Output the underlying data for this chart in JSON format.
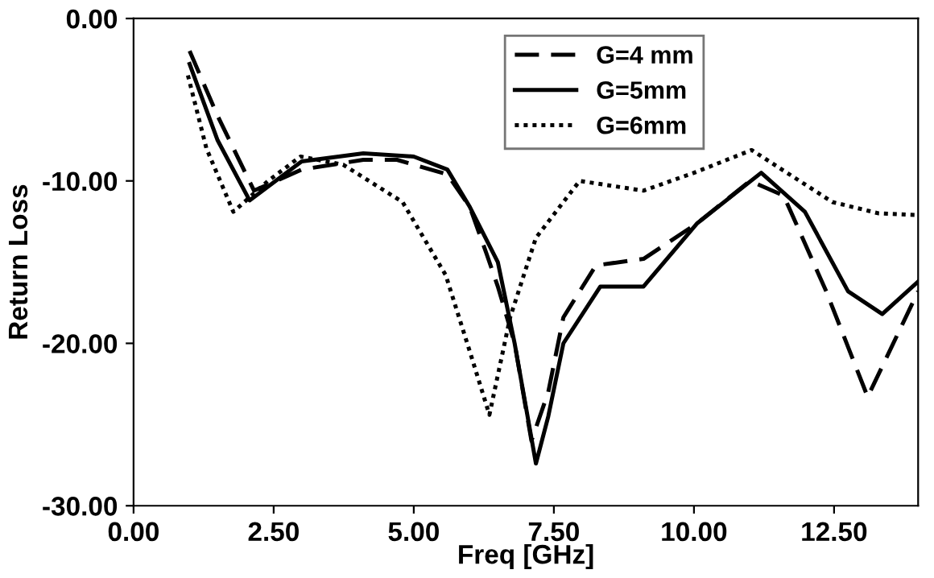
{
  "chart_data": {
    "type": "line",
    "xlabel": "Freq [GHz]",
    "ylabel": "Return Loss",
    "xlim": [
      0,
      14
    ],
    "ylim": [
      -30,
      0
    ],
    "xticks": [
      {
        "value": 0,
        "label": "0.00"
      },
      {
        "value": 2.5,
        "label": "2.50"
      },
      {
        "value": 5,
        "label": "5.00"
      },
      {
        "value": 7.5,
        "label": "7.50"
      },
      {
        "value": 10,
        "label": "10.00"
      },
      {
        "value": 12.5,
        "label": "12.50"
      }
    ],
    "yticks": [
      {
        "value": -30,
        "label": "-30.00"
      },
      {
        "value": -20,
        "label": "-20.00"
      },
      {
        "value": -10,
        "label": "-10.00"
      },
      {
        "value": 0,
        "label": "0.00"
      }
    ],
    "grid": false,
    "legend": "top",
    "marker": "none",
    "series": [
      {
        "name": "G=4 mm",
        "color": "#000000",
        "line_style": "dashed",
        "x": [
          1.0,
          1.5,
          2.15,
          3.0,
          4.1,
          4.7,
          5.6,
          6.0,
          6.3,
          6.5,
          6.8,
          7.1,
          7.4,
          7.67,
          8.25,
          9.1,
          10.06,
          11.0,
          11.6,
          12.36,
          13.1,
          14.0
        ],
        "values": [
          -2.0,
          -6.0,
          -10.6,
          -9.3,
          -8.7,
          -8.7,
          -9.6,
          -11.6,
          -14.5,
          -16.5,
          -20.0,
          -26.0,
          -23.0,
          -18.4,
          -15.2,
          -14.8,
          -12.6,
          -10.0,
          -10.9,
          -16.8,
          -23.3,
          -16.8
        ]
      },
      {
        "name": "G=5mm",
        "color": "#000000",
        "line_style": "solid",
        "x": [
          1.0,
          1.5,
          2.07,
          3.0,
          4.1,
          5.0,
          5.6,
          6.0,
          6.5,
          6.8,
          7.18,
          7.4,
          7.67,
          8.33,
          9.1,
          10.06,
          11.2,
          11.98,
          12.75,
          13.36,
          14.0
        ],
        "values": [
          -2.8,
          -7.5,
          -11.2,
          -8.8,
          -8.3,
          -8.5,
          -9.3,
          -11.6,
          -15.0,
          -20.0,
          -27.4,
          -24.5,
          -20.0,
          -16.5,
          -16.5,
          -12.6,
          -9.5,
          -11.9,
          -16.8,
          -18.2,
          -16.2
        ]
      },
      {
        "name": "G=6mm",
        "color": "#000000",
        "line_style": "dotted",
        "x": [
          0.97,
          1.3,
          1.78,
          2.4,
          2.98,
          3.74,
          4.8,
          5.57,
          6.0,
          6.35,
          6.72,
          7.18,
          7.96,
          9.1,
          10.0,
          11.03,
          12.47,
          13.3,
          14.0
        ],
        "values": [
          -3.5,
          -8.0,
          -11.9,
          -10.0,
          -8.5,
          -9.0,
          -11.3,
          -15.8,
          -20.5,
          -24.4,
          -18.4,
          -13.5,
          -10.0,
          -10.6,
          -9.5,
          -8.1,
          -11.3,
          -12.0,
          -12.1
        ]
      }
    ]
  }
}
